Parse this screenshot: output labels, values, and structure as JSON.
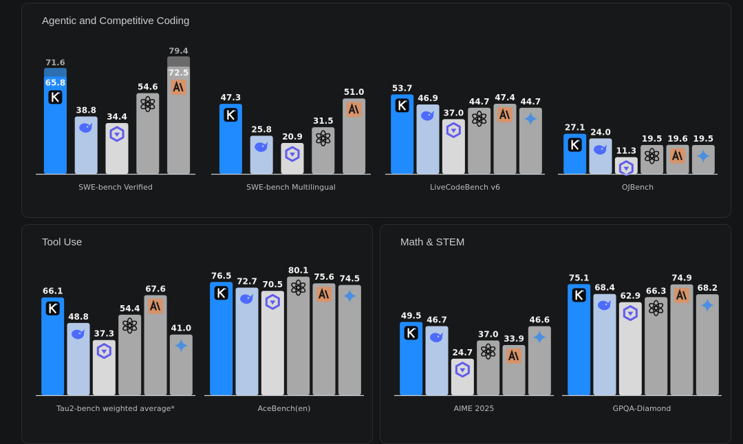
{
  "colors": {
    "background": "#141516",
    "panel": "#171819",
    "kimi": "#1f8bff",
    "deepseek": "#b3c8e6",
    "qwen": "#d9d9d9",
    "openai": "#a8a8a8",
    "anthropic": "#a8a8a8",
    "google": "#a8a8a8",
    "value_label": "#f2f2f2",
    "secondary_label": "#a8a8a8",
    "axis": "#cfd2d6",
    "category_label": "#b8bcc0",
    "anthropic_badge": "#d8936a"
  },
  "models": [
    {
      "key": "kimi",
      "icon": "kimi-k-icon"
    },
    {
      "key": "deepseek",
      "icon": "deepseek-whale-icon"
    },
    {
      "key": "qwen",
      "icon": "qwen-icon"
    },
    {
      "key": "openai",
      "icon": "openai-icon"
    },
    {
      "key": "anthropic",
      "icon": "anthropic-icon"
    },
    {
      "key": "google",
      "icon": "gemini-star-icon"
    }
  ],
  "panels": [
    {
      "title": "Agentic and Competitive Coding"
    },
    {
      "title": "Tool Use"
    },
    {
      "title": "Math & STEM"
    }
  ],
  "chart_data": [
    {
      "type": "bar",
      "panel": "Agentic and Competitive Coding",
      "title": "SWE-bench Verified",
      "models": [
        "kimi",
        "deepseek",
        "qwen",
        "openai",
        "anthropic"
      ],
      "values": [
        65.8,
        38.8,
        34.4,
        54.6,
        72.5
      ],
      "secondary_values": [
        71.6,
        null,
        null,
        null,
        79.4
      ],
      "ylim": [
        0,
        85
      ]
    },
    {
      "type": "bar",
      "panel": "Agentic and Competitive Coding",
      "title": "SWE-bench Multilingual",
      "models": [
        "kimi",
        "deepseek",
        "qwen",
        "openai",
        "anthropic"
      ],
      "values": [
        47.3,
        25.8,
        20.9,
        31.5,
        51.0
      ],
      "ylim": [
        0,
        85
      ]
    },
    {
      "type": "bar",
      "panel": "Agentic and Competitive Coding",
      "title": "LiveCodeBench v6",
      "models": [
        "kimi",
        "deepseek",
        "qwen",
        "openai",
        "anthropic",
        "google"
      ],
      "values": [
        53.7,
        46.9,
        37.0,
        44.7,
        47.4,
        44.7
      ],
      "ylim": [
        0,
        85
      ]
    },
    {
      "type": "bar",
      "panel": "Agentic and Competitive Coding",
      "title": "OJBench",
      "models": [
        "kimi",
        "deepseek",
        "qwen",
        "openai",
        "anthropic",
        "google"
      ],
      "values": [
        27.1,
        24.0,
        11.3,
        19.5,
        19.6,
        19.5
      ],
      "ylim": [
        0,
        85
      ]
    },
    {
      "type": "bar",
      "panel": "Tool Use",
      "title": "Tau2-bench weighted average*",
      "models": [
        "kimi",
        "deepseek",
        "qwen",
        "openai",
        "anthropic",
        "google"
      ],
      "values": [
        66.1,
        48.8,
        37.3,
        54.4,
        67.6,
        41.0
      ],
      "ylim": [
        0,
        85
      ]
    },
    {
      "type": "bar",
      "panel": "Tool Use",
      "title": "AceBench(en)",
      "models": [
        "kimi",
        "deepseek",
        "qwen",
        "openai",
        "anthropic",
        "google"
      ],
      "values": [
        76.5,
        72.7,
        70.5,
        80.1,
        75.6,
        74.5
      ],
      "ylim": [
        0,
        85
      ]
    },
    {
      "type": "bar",
      "panel": "Math & STEM",
      "title": "AIME 2025",
      "models": [
        "kimi",
        "deepseek",
        "qwen",
        "openai",
        "anthropic",
        "google"
      ],
      "values": [
        49.5,
        46.7,
        24.7,
        37.0,
        33.9,
        46.6
      ],
      "ylim": [
        0,
        85
      ]
    },
    {
      "type": "bar",
      "panel": "Math & STEM",
      "title": "GPQA-Diamond",
      "models": [
        "kimi",
        "deepseek",
        "qwen",
        "openai",
        "anthropic",
        "google"
      ],
      "values": [
        75.1,
        68.4,
        62.9,
        66.3,
        74.9,
        68.2
      ],
      "ylim": [
        0,
        85
      ]
    }
  ]
}
